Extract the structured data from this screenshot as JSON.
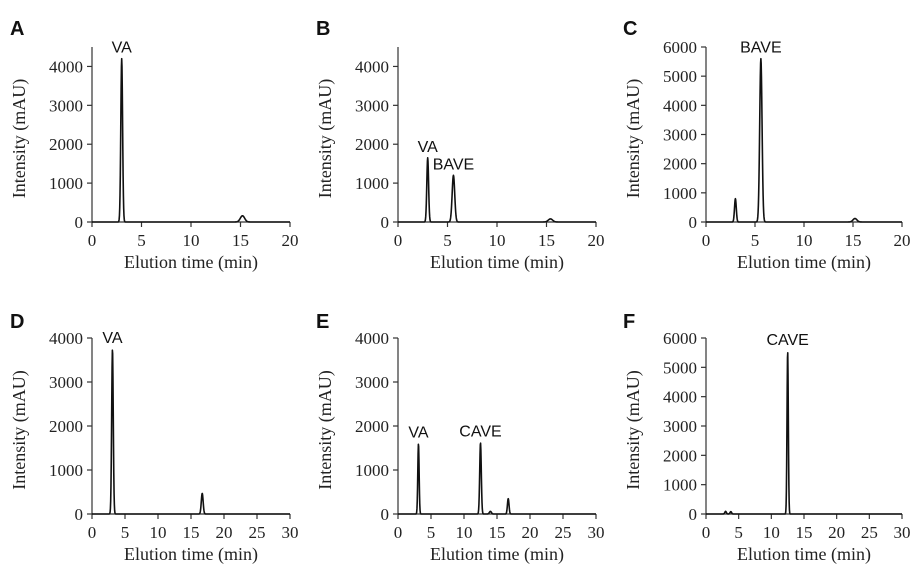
{
  "chart_data": [
    {
      "id": "A",
      "type": "line",
      "letter": "A",
      "xlabel": "Elution time (min)",
      "ylabel": "Intensity (mAU)",
      "xlim": [
        0,
        20
      ],
      "ylim": [
        0,
        4500
      ],
      "xticks": [
        0,
        5,
        10,
        15,
        20
      ],
      "yticks": [
        0,
        1000,
        2000,
        3000,
        4000
      ],
      "series": [
        {
          "peaks": [
            {
              "x": 3.0,
              "y": 4200,
              "w": 0.09
            },
            {
              "x": 15.2,
              "y": 160,
              "w": 0.22
            }
          ]
        }
      ],
      "annotations": [
        {
          "text": "VA",
          "x": 3.0,
          "y": 4200
        }
      ]
    },
    {
      "id": "B",
      "type": "line",
      "letter": "B",
      "xlabel": "Elution time (min)",
      "ylabel": "Intensity (mAU)",
      "xlim": [
        0,
        20
      ],
      "ylim": [
        0,
        4500
      ],
      "xticks": [
        0,
        5,
        10,
        15,
        20
      ],
      "yticks": [
        0,
        1000,
        2000,
        3000,
        4000
      ],
      "series": [
        {
          "peaks": [
            {
              "x": 3.0,
              "y": 1650,
              "w": 0.09
            },
            {
              "x": 5.6,
              "y": 1200,
              "w": 0.13
            },
            {
              "x": 15.4,
              "y": 80,
              "w": 0.22
            }
          ]
        }
      ],
      "annotations": [
        {
          "text": "VA",
          "x": 3.0,
          "y": 1650
        },
        {
          "text": "BAVE",
          "x": 5.6,
          "y": 1200
        }
      ]
    },
    {
      "id": "C",
      "type": "line",
      "letter": "C",
      "xlabel": "Elution time (min)",
      "ylabel": "Intensity (mAU)",
      "xlim": [
        0,
        20
      ],
      "ylim": [
        0,
        6000
      ],
      "xticks": [
        0,
        5,
        10,
        15,
        20
      ],
      "yticks": [
        0,
        1000,
        2000,
        3000,
        4000,
        5000,
        6000
      ],
      "series": [
        {
          "peaks": [
            {
              "x": 3.0,
              "y": 800,
              "w": 0.09
            },
            {
              "x": 5.6,
              "y": 5600,
              "w": 0.12
            },
            {
              "x": 15.2,
              "y": 120,
              "w": 0.2
            }
          ]
        }
      ],
      "annotations": [
        {
          "text": "BAVE",
          "x": 5.6,
          "y": 5600
        }
      ]
    },
    {
      "id": "D",
      "type": "line",
      "letter": "D",
      "xlabel": "Elution time (min)",
      "ylabel": "Intensity (mAU)",
      "xlim": [
        0,
        30
      ],
      "ylim": [
        0,
        4000
      ],
      "xticks": [
        0,
        5,
        10,
        15,
        20,
        25,
        30
      ],
      "yticks": [
        0,
        1000,
        2000,
        3000,
        4000
      ],
      "series": [
        {
          "peaks": [
            {
              "x": 3.1,
              "y": 3750,
              "w": 0.12
            },
            {
              "x": 16.7,
              "y": 470,
              "w": 0.14
            }
          ]
        }
      ],
      "annotations": [
        {
          "text": "VA",
          "x": 3.1,
          "y": 3750
        }
      ]
    },
    {
      "id": "E",
      "type": "line",
      "letter": "E",
      "xlabel": "Elution time (min)",
      "ylabel": "Intensity (mAU)",
      "xlim": [
        0,
        30
      ],
      "ylim": [
        0,
        4000
      ],
      "xticks": [
        0,
        5,
        10,
        15,
        20,
        25,
        30
      ],
      "yticks": [
        0,
        1000,
        2000,
        3000,
        4000
      ],
      "series": [
        {
          "peaks": [
            {
              "x": 3.1,
              "y": 1600,
              "w": 0.1
            },
            {
              "x": 12.5,
              "y": 1620,
              "w": 0.12
            },
            {
              "x": 14.0,
              "y": 60,
              "w": 0.15
            },
            {
              "x": 16.7,
              "y": 350,
              "w": 0.12
            }
          ]
        }
      ],
      "annotations": [
        {
          "text": "VA",
          "x": 3.1,
          "y": 1600
        },
        {
          "text": "CAVE",
          "x": 12.5,
          "y": 1620
        }
      ]
    },
    {
      "id": "F",
      "type": "line",
      "letter": "F",
      "xlabel": "Elution time (min)",
      "ylabel": "Intensity (mAU)",
      "xlim": [
        0,
        30
      ],
      "ylim": [
        0,
        6000
      ],
      "xticks": [
        0,
        5,
        10,
        15,
        20,
        25,
        30
      ],
      "yticks": [
        0,
        1000,
        2000,
        3000,
        4000,
        5000,
        6000
      ],
      "series": [
        {
          "peaks": [
            {
              "x": 3.0,
              "y": 90,
              "w": 0.12
            },
            {
              "x": 3.8,
              "y": 80,
              "w": 0.12
            },
            {
              "x": 12.5,
              "y": 5550,
              "w": 0.1
            }
          ]
        }
      ],
      "annotations": [
        {
          "text": "CAVE",
          "x": 12.5,
          "y": 5550
        }
      ]
    }
  ]
}
